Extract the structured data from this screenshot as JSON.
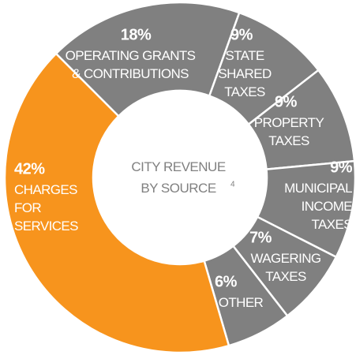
{
  "chart_data": {
    "type": "donut",
    "title": "CITY REVENUE\nBY SOURCE",
    "title_note": "4",
    "categories": [
      "OPERATING GRANTS\n& CONTRIBUTIONS",
      "STATE\nSHARED\nTAXES",
      "PROPERTY\nTAXES",
      "MUNICIPAL\nINCOME\nTAXES",
      "WAGERING\nTAXES",
      "OTHER",
      "CHARGES\nFOR\nSERVICES"
    ],
    "values": [
      18,
      9,
      9,
      9,
      7,
      6,
      42
    ],
    "value_labels": [
      "18%",
      "9%",
      "9%",
      "9%",
      "7%",
      "6%",
      "42%"
    ],
    "colors": [
      "#808080",
      "#808080",
      "#808080",
      "#808080",
      "#808080",
      "#808080",
      "#f7941d"
    ]
  }
}
